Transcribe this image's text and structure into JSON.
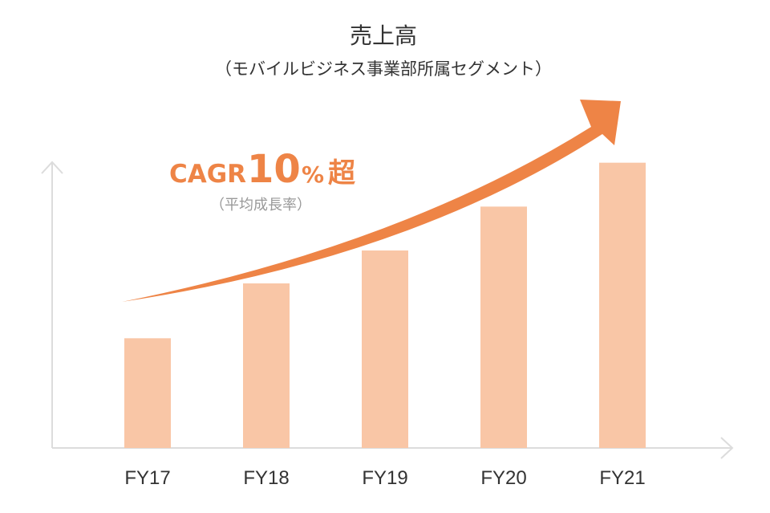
{
  "chart_data": {
    "type": "bar",
    "title": "売上高",
    "subtitle": "（モバイルビジネス事業部所属セグメント）",
    "categories": [
      "FY17",
      "FY18",
      "FY19",
      "FY20",
      "FY21"
    ],
    "values": [
      1.0,
      1.5,
      1.8,
      2.2,
      2.6
    ],
    "ylim": [
      0,
      3.0
    ],
    "grid": false,
    "bar_color": "#f9c6a6",
    "axis_color": "#dcdcdc",
    "annotation": {
      "prefix": "CAGR",
      "value": "10",
      "unit": "%",
      "suffix": "超",
      "note": "（平均成長率）",
      "color": "#ee8446"
    }
  }
}
